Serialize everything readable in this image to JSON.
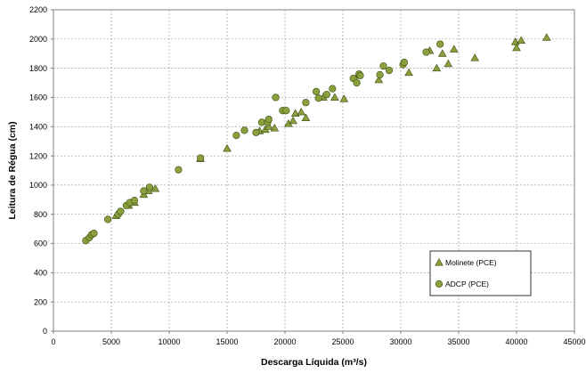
{
  "chart_data": {
    "type": "scatter",
    "xlabel": "Descarga Líquida (m³/s)",
    "ylabel": "Leitura de Régua (cm)",
    "xlim": [
      0,
      45000
    ],
    "ylim": [
      0,
      2200
    ],
    "x_ticks": [
      0,
      5000,
      10000,
      15000,
      20000,
      25000,
      30000,
      35000,
      40000,
      45000
    ],
    "x_tick_labels": [
      "0",
      "5000",
      "10000",
      "15000",
      "20000",
      "25000",
      "30000",
      "35000",
      "40000",
      "45000"
    ],
    "y_ticks": [
      0,
      200,
      400,
      600,
      800,
      1000,
      1200,
      1400,
      1600,
      1800,
      2000,
      2200
    ],
    "y_tick_labels": [
      "0",
      "200",
      "400",
      "600",
      "800",
      "1000",
      "1200",
      "1400",
      "1600",
      "1800",
      "2000",
      "2200"
    ],
    "grid": true,
    "legend_position": "bottom-right",
    "marker_color": "#8aa03d",
    "marker_edge": "#3d4a12",
    "series": [
      {
        "name": "Molinete (PCE)",
        "marker": "triangle",
        "points": [
          [
            5400,
            790
          ],
          [
            6500,
            860
          ],
          [
            7000,
            880
          ],
          [
            7800,
            935
          ],
          [
            8200,
            960
          ],
          [
            8800,
            975
          ],
          [
            12700,
            1180
          ],
          [
            15000,
            1250
          ],
          [
            17800,
            1370
          ],
          [
            18300,
            1380
          ],
          [
            18600,
            1400
          ],
          [
            19100,
            1390
          ],
          [
            20300,
            1420
          ],
          [
            20700,
            1440
          ],
          [
            20900,
            1490
          ],
          [
            21400,
            1500
          ],
          [
            21800,
            1460
          ],
          [
            23300,
            1600
          ],
          [
            24300,
            1600
          ],
          [
            25100,
            1590
          ],
          [
            26300,
            1750
          ],
          [
            28100,
            1720
          ],
          [
            30700,
            1770
          ],
          [
            32500,
            1920
          ],
          [
            33100,
            1800
          ],
          [
            33600,
            1900
          ],
          [
            34100,
            1830
          ],
          [
            34600,
            1930
          ],
          [
            36400,
            1870
          ],
          [
            39900,
            1980
          ],
          [
            40000,
            1940
          ],
          [
            40400,
            1990
          ],
          [
            42600,
            2010
          ]
        ]
      },
      {
        "name": "ADCP (PCE)",
        "marker": "circle",
        "points": [
          [
            2800,
            620
          ],
          [
            3100,
            640
          ],
          [
            3300,
            660
          ],
          [
            3500,
            670
          ],
          [
            4700,
            765
          ],
          [
            5600,
            800
          ],
          [
            5800,
            820
          ],
          [
            6300,
            860
          ],
          [
            6600,
            880
          ],
          [
            7000,
            895
          ],
          [
            7800,
            960
          ],
          [
            8300,
            985
          ],
          [
            10800,
            1105
          ],
          [
            12700,
            1185
          ],
          [
            15800,
            1340
          ],
          [
            16500,
            1375
          ],
          [
            17500,
            1360
          ],
          [
            18000,
            1430
          ],
          [
            18500,
            1430
          ],
          [
            18600,
            1450
          ],
          [
            19200,
            1600
          ],
          [
            19800,
            1510
          ],
          [
            20100,
            1510
          ],
          [
            21800,
            1565
          ],
          [
            22700,
            1640
          ],
          [
            22900,
            1595
          ],
          [
            23600,
            1620
          ],
          [
            24100,
            1660
          ],
          [
            25900,
            1730
          ],
          [
            26200,
            1700
          ],
          [
            26400,
            1760
          ],
          [
            26500,
            1750
          ],
          [
            28200,
            1755
          ],
          [
            28500,
            1815
          ],
          [
            29000,
            1785
          ],
          [
            30200,
            1825
          ],
          [
            30300,
            1840
          ],
          [
            32200,
            1910
          ],
          [
            33400,
            1965
          ]
        ]
      }
    ]
  }
}
